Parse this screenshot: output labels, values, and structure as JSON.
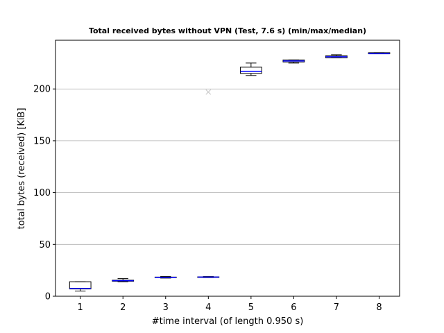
{
  "chart_data": {
    "type": "boxplot",
    "title": "Total received bytes without VPN (Test, 7.6 s) (min/max/median)",
    "xlabel": "#time interval (of length 0.950 s)",
    "ylabel": "total bytes (received) [KiB]",
    "categories": [
      "1",
      "2",
      "3",
      "4",
      "5",
      "6",
      "7",
      "8"
    ],
    "xlim": [
      0.42,
      8.48
    ],
    "ylim": [
      0,
      247
    ],
    "yticks": [
      0,
      50,
      100,
      150,
      200
    ],
    "ytick_labels": [
      "0",
      "50",
      "100",
      "150",
      "200"
    ],
    "grid": "y-major",
    "boxes": [
      {
        "x": 1,
        "whislo": 5,
        "q1": 7,
        "med": 7.5,
        "q3": 14,
        "whishi": 14
      },
      {
        "x": 2,
        "whislo": 14,
        "q1": 14.5,
        "med": 15,
        "q3": 15.5,
        "whishi": 17
      },
      {
        "x": 3,
        "whislo": 17.5,
        "q1": 18,
        "med": 18.2,
        "q3": 18.5,
        "whishi": 19
      },
      {
        "x": 4,
        "whislo": 18,
        "q1": 18.2,
        "med": 18.5,
        "q3": 18.7,
        "whishi": 19
      },
      {
        "x": 5,
        "whislo": 213,
        "q1": 215,
        "med": 217,
        "q3": 221,
        "whishi": 225
      },
      {
        "x": 6,
        "whislo": 225,
        "q1": 226,
        "med": 227,
        "q3": 228,
        "whishi": 228
      },
      {
        "x": 7,
        "whislo": 230,
        "q1": 230,
        "med": 231,
        "q3": 232,
        "whishi": 233
      },
      {
        "x": 8,
        "whislo": 234,
        "q1": 234,
        "med": 234,
        "q3": 235,
        "whishi": 235
      }
    ],
    "outliers": [
      {
        "x": 4,
        "y": 197
      }
    ],
    "colors": {
      "box": "#000000",
      "median": "#0000ff",
      "outlier": "#c0c0c0",
      "grid": "#b0b0b0"
    }
  }
}
